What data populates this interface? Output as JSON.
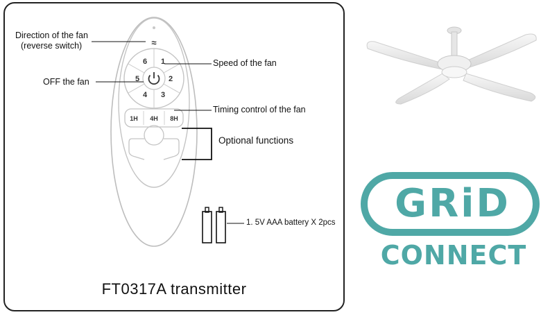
{
  "labels": {
    "direction_line1": "Direction of the fan",
    "direction_line2": "(reverse switch)",
    "speed": "Speed of the fan",
    "off": "OFF  the fan",
    "timing": "Timing control of the fan",
    "optional": "Optional  functions",
    "battery": "1. 5V  AAA battery X  2pcs"
  },
  "remote": {
    "speed_keys": [
      "1",
      "2",
      "3",
      "4",
      "5",
      "6"
    ],
    "timer_keys": [
      "1H",
      "4H",
      "8H"
    ],
    "reverse_symbol": "≈"
  },
  "caption": "FT0317A transmitter",
  "logo": {
    "line1": "GRiD",
    "line2": "CONNECT",
    "color": "#4fa8a6"
  }
}
